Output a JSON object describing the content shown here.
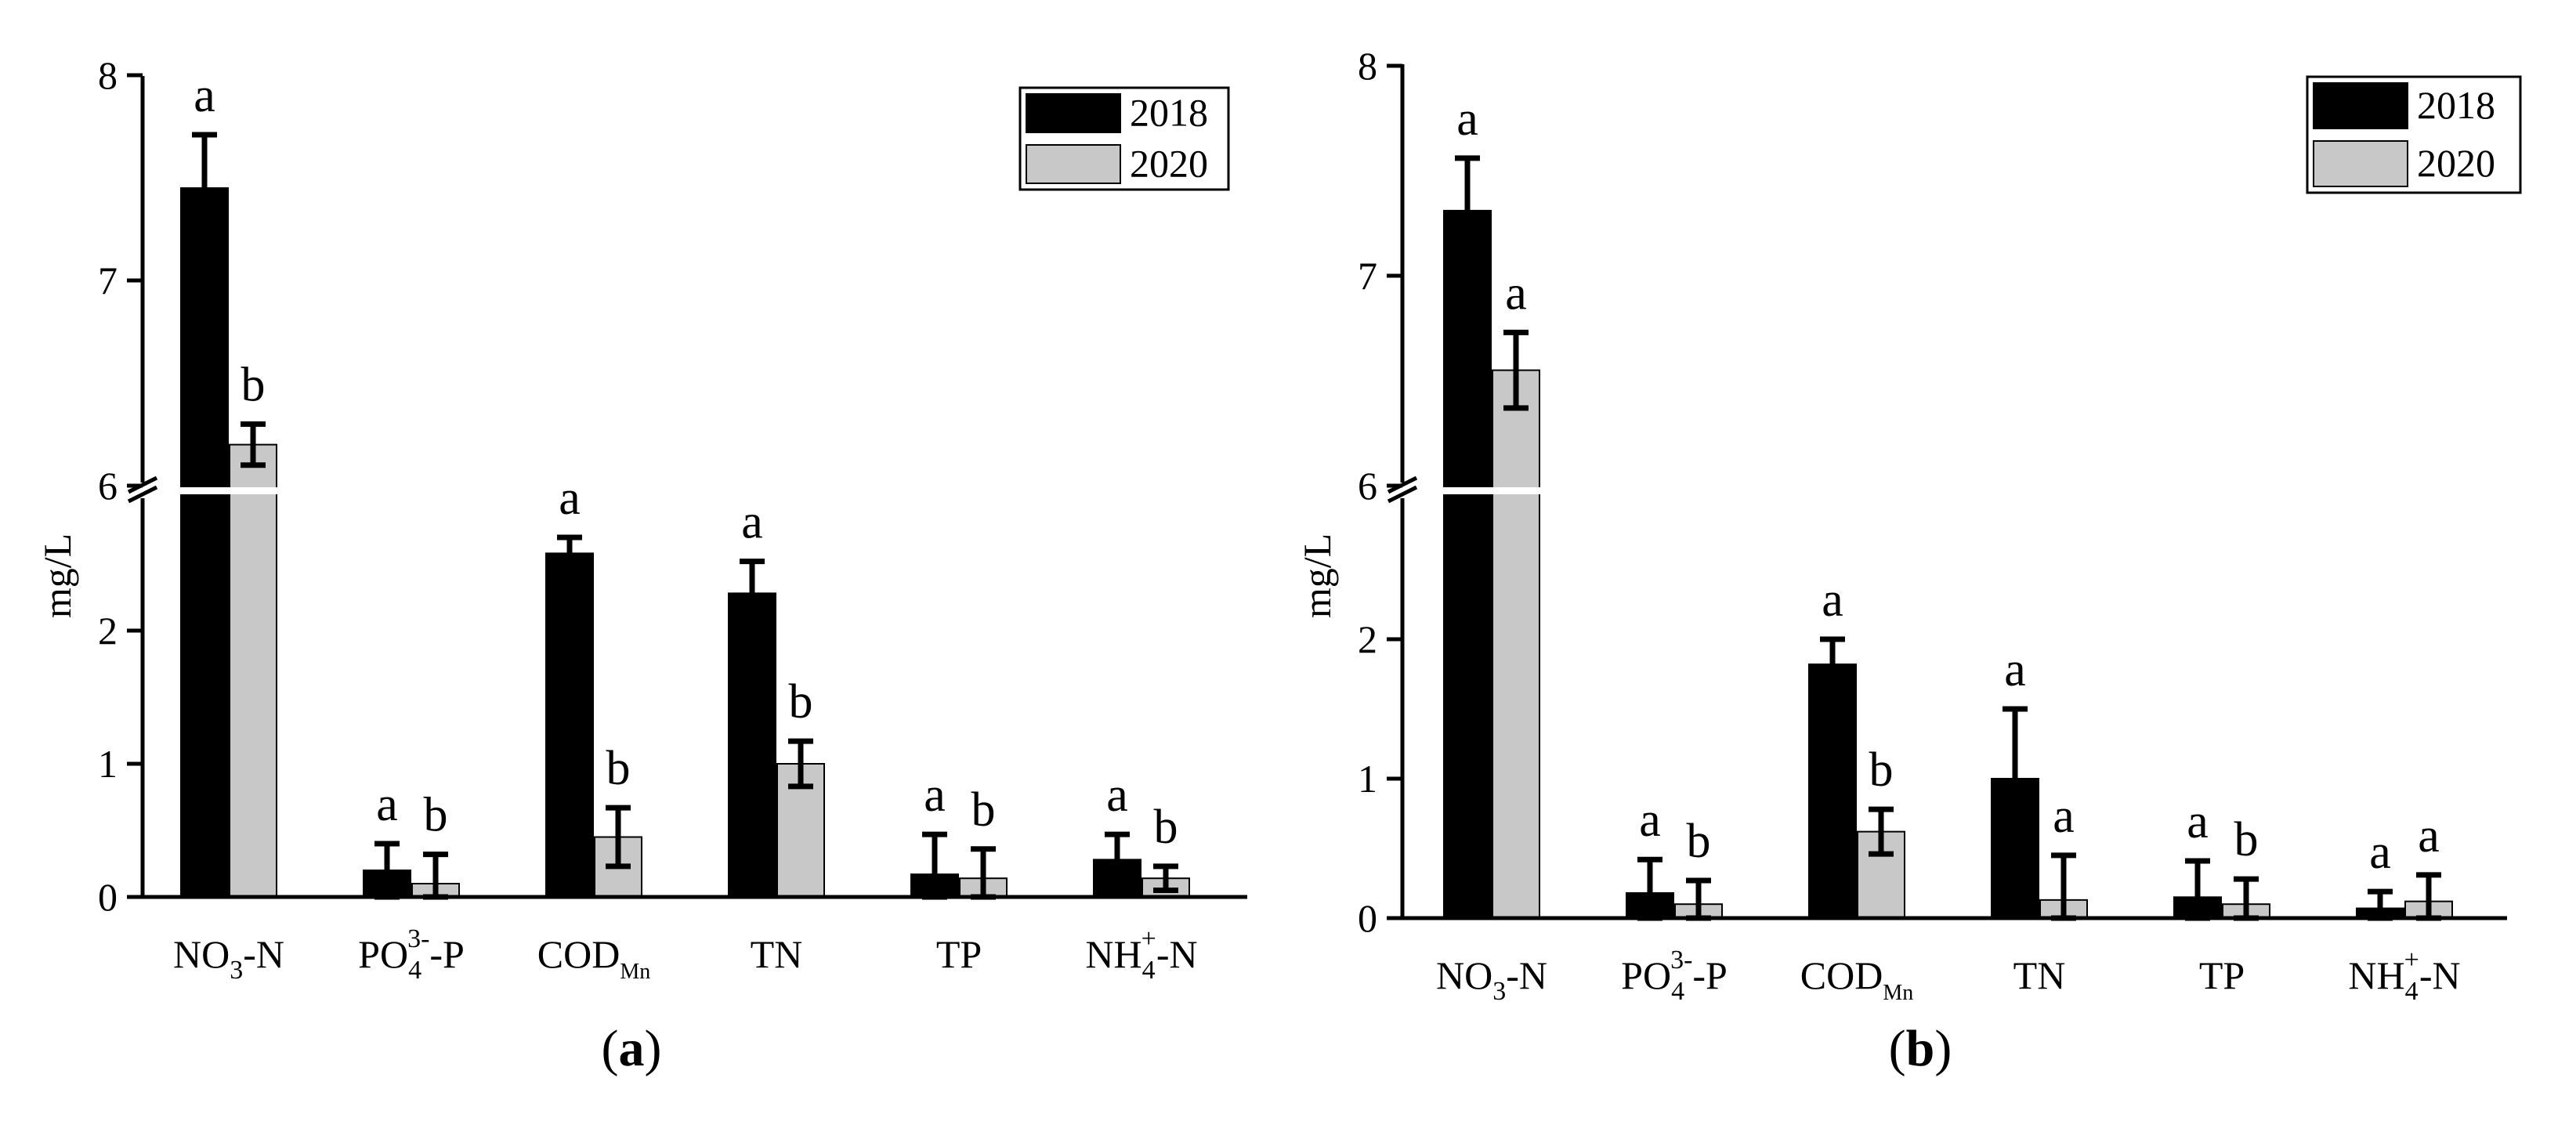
{
  "legend_labels": [
    "2018",
    "2020"
  ],
  "series_colors": {
    "2018": "#000000",
    "2020": "#c8c8c8"
  },
  "chart_data": [
    {
      "type": "bar",
      "panel_label": "a",
      "ylabel": "mg/L",
      "broken_axis": true,
      "ylim_lower": [
        0,
        3
      ],
      "ylim_upper": [
        6,
        8
      ],
      "y_ticks_lower": [
        "0",
        "1",
        "2"
      ],
      "y_ticks_upper": [
        "6",
        "7",
        "8"
      ],
      "categories": [
        {
          "main": "NO",
          "sub": "3",
          "sup": "",
          "tail": "-N"
        },
        {
          "main": "PO",
          "sub": "4",
          "sup": "3-",
          "tail": "-P"
        },
        {
          "main": "COD",
          "sub": "Mn",
          "sup": "",
          "tail": ""
        },
        {
          "main": "TN",
          "sub": "",
          "sup": "",
          "tail": ""
        },
        {
          "main": "TP",
          "sub": "",
          "sup": "",
          "tail": ""
        },
        {
          "main": "NH",
          "sub": "4",
          "sup": "+",
          "tail": "-N"
        }
      ],
      "legend_position": "top-right",
      "series": [
        {
          "name": "2018",
          "values": [
            7.45,
            0.2,
            2.58,
            2.28,
            0.17,
            0.28
          ],
          "errors": [
            0.26,
            0.2,
            0.12,
            0.24,
            0.3,
            0.19
          ],
          "letters": [
            "a",
            "a",
            "a",
            "a",
            "a",
            "a"
          ]
        },
        {
          "name": "2020",
          "values": [
            6.2,
            0.1,
            0.45,
            1.0,
            0.14,
            0.14
          ],
          "errors": [
            0.1,
            0.22,
            0.22,
            0.17,
            0.22,
            0.09
          ],
          "letters": [
            "b",
            "b",
            "b",
            "b",
            "b",
            "b"
          ]
        }
      ]
    },
    {
      "type": "bar",
      "panel_label": "b",
      "ylabel": "mg/L",
      "broken_axis": true,
      "ylim_lower": [
        0,
        3
      ],
      "ylim_upper": [
        6,
        8
      ],
      "y_ticks_lower": [
        "0",
        "1",
        "2"
      ],
      "y_ticks_upper": [
        "6",
        "7",
        "8"
      ],
      "categories": [
        {
          "main": "NO",
          "sub": "3",
          "sup": "",
          "tail": "-N"
        },
        {
          "main": "PO",
          "sub": "4",
          "sup": "3-",
          "tail": "-P"
        },
        {
          "main": "COD",
          "sub": "Mn",
          "sup": "",
          "tail": ""
        },
        {
          "main": "TN",
          "sub": "",
          "sup": "",
          "tail": ""
        },
        {
          "main": "TP",
          "sub": "",
          "sup": "",
          "tail": ""
        },
        {
          "main": "NH",
          "sub": "4",
          "sup": "+",
          "tail": "-N"
        }
      ],
      "legend_position": "top-right",
      "series": [
        {
          "name": "2018",
          "values": [
            7.31,
            0.18,
            1.82,
            1.0,
            0.15,
            0.07
          ],
          "errors": [
            0.25,
            0.24,
            0.18,
            0.5,
            0.26,
            0.12
          ],
          "letters": [
            "a",
            "a",
            "a",
            "a",
            "a",
            "a"
          ]
        },
        {
          "name": "2020",
          "values": [
            6.55,
            0.1,
            0.62,
            0.13,
            0.1,
            0.12
          ],
          "errors": [
            0.18,
            0.17,
            0.16,
            0.32,
            0.18,
            0.19
          ],
          "letters": [
            "a",
            "b",
            "b",
            "a",
            "b",
            "a"
          ]
        }
      ]
    }
  ]
}
